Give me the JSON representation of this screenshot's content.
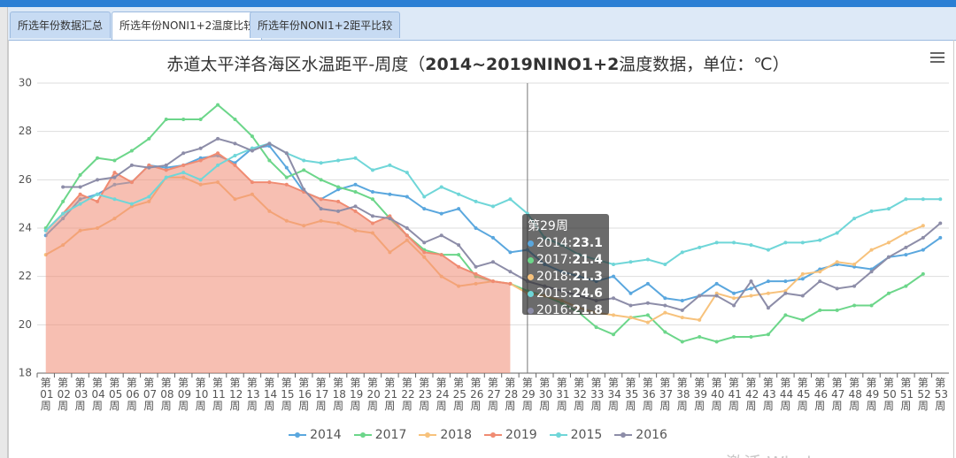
{
  "tabs": [
    "所选年份数据汇总",
    "所选年份NONI1+2温度比较",
    "所选年份NONI1+2距平比较"
  ],
  "watermark": "激活 Windows",
  "chart_data": {
    "type": "line",
    "title_parts": [
      "赤道太平洋各海区水温距平-周度（",
      "2014~2019NINO1+2",
      "温度数据，单位：℃）"
    ],
    "categories": [
      "第01周",
      "第02周",
      "第03周",
      "第04周",
      "第05周",
      "第06周",
      "第07周",
      "第08周",
      "第09周",
      "第10周",
      "第11周",
      "第12周",
      "第13周",
      "第14周",
      "第15周",
      "第16周",
      "第17周",
      "第18周",
      "第19周",
      "第20周",
      "第21周",
      "第22周",
      "第23周",
      "第24周",
      "第25周",
      "第26周",
      "第27周",
      "第28周",
      "第29周",
      "第30周",
      "第31周",
      "第32周",
      "第33周",
      "第34周",
      "第35周",
      "第36周",
      "第37周",
      "第38周",
      "第39周",
      "第40周",
      "第41周",
      "第42周",
      "第43周",
      "第44周",
      "第45周",
      "第46周",
      "第47周",
      "第48周",
      "第49周",
      "第50周",
      "第51周",
      "第52周",
      "第53周"
    ],
    "ylim": [
      18,
      30
    ],
    "yticks": [
      18,
      20,
      22,
      24,
      26,
      28,
      30
    ],
    "grid": true,
    "legend": "bottom",
    "series": [
      {
        "name": "2014",
        "color": "#5aa7de",
        "values": [
          23.7,
          24.4,
          25.2,
          25.4,
          25.8,
          25.9,
          26.6,
          26.5,
          26.6,
          26.9,
          27.0,
          26.7,
          27.3,
          27.4,
          26.5,
          25.5,
          25.2,
          25.6,
          25.8,
          25.5,
          25.4,
          25.3,
          24.8,
          24.6,
          24.8,
          24.0,
          23.6,
          23.0,
          23.1,
          22.5,
          22.2,
          22.0,
          21.8,
          22.0,
          21.3,
          21.7,
          21.1,
          21.0,
          21.2,
          21.7,
          21.3,
          21.5,
          21.8,
          21.8,
          21.9,
          22.3,
          22.5,
          22.4,
          22.3,
          22.8,
          22.9,
          23.1,
          23.6
        ]
      },
      {
        "name": "2017",
        "color": "#6cd68a",
        "values": [
          24.0,
          25.1,
          26.2,
          26.9,
          26.8,
          27.2,
          27.7,
          28.5,
          28.5,
          28.5,
          29.1,
          28.5,
          27.8,
          26.8,
          26.1,
          26.4,
          26.0,
          25.7,
          25.5,
          25.2,
          24.4,
          23.7,
          23.1,
          22.9,
          22.9,
          22.0,
          21.8,
          21.7,
          21.4,
          21.2,
          20.9,
          20.5,
          19.9,
          19.6,
          20.3,
          20.4,
          19.7,
          19.3,
          19.5,
          19.3,
          19.5,
          19.5,
          19.6,
          20.4,
          20.2,
          20.6,
          20.6,
          20.8,
          20.8,
          21.3,
          21.6,
          22.1,
          null
        ]
      },
      {
        "name": "2018",
        "color": "#f7c27c",
        "values": [
          22.9,
          23.3,
          23.9,
          24.0,
          24.4,
          24.9,
          25.1,
          26.1,
          26.1,
          25.8,
          25.9,
          25.2,
          25.4,
          24.7,
          24.3,
          24.1,
          24.3,
          24.2,
          23.9,
          23.8,
          23.0,
          23.5,
          22.8,
          22.0,
          21.6,
          21.7,
          21.8,
          21.7,
          21.3,
          21.2,
          21.0,
          20.7,
          20.5,
          20.4,
          20.3,
          20.1,
          20.5,
          20.3,
          20.2,
          21.3,
          21.1,
          21.2,
          21.3,
          21.4,
          22.1,
          22.2,
          22.6,
          22.5,
          23.1,
          23.4,
          23.8,
          24.1,
          null
        ]
      },
      {
        "name": "2019",
        "color": "#f08b72",
        "area": true,
        "values": [
          23.9,
          24.6,
          25.4,
          25.1,
          26.3,
          25.9,
          26.6,
          26.4,
          26.6,
          26.8,
          27.1,
          26.6,
          25.9,
          25.9,
          25.8,
          25.5,
          25.2,
          25.1,
          24.7,
          24.2,
          24.5,
          23.7,
          23.0,
          22.9,
          22.4,
          22.1,
          21.8,
          21.7,
          null,
          null,
          null,
          null,
          null,
          null,
          null,
          null,
          null,
          null,
          null,
          null,
          null,
          null,
          null,
          null,
          null,
          null,
          null,
          null,
          null,
          null,
          null,
          null,
          null
        ]
      },
      {
        "name": "2015",
        "color": "#6fd6d8",
        "values": [
          23.9,
          24.6,
          25.0,
          25.4,
          25.2,
          25.0,
          25.3,
          26.1,
          26.3,
          26.0,
          26.6,
          27.0,
          27.3,
          27.5,
          27.1,
          26.8,
          26.7,
          26.8,
          26.9,
          26.4,
          26.6,
          26.3,
          25.3,
          25.7,
          25.4,
          25.1,
          24.9,
          25.2,
          24.6,
          23.6,
          23.3,
          22.9,
          22.7,
          22.5,
          22.6,
          22.7,
          22.5,
          23.0,
          23.2,
          23.4,
          23.4,
          23.3,
          23.1,
          23.4,
          23.4,
          23.5,
          23.8,
          24.4,
          24.7,
          24.8,
          25.2,
          25.2,
          25.2
        ]
      },
      {
        "name": "2016",
        "color": "#8d8da8",
        "values": [
          null,
          25.7,
          25.7,
          26.0,
          26.1,
          26.6,
          26.5,
          26.6,
          27.1,
          27.3,
          27.7,
          27.5,
          27.2,
          27.5,
          27.1,
          25.6,
          24.8,
          24.7,
          24.9,
          24.5,
          24.4,
          24.0,
          23.4,
          23.7,
          23.3,
          22.4,
          22.6,
          22.2,
          21.8,
          21.6,
          21.4,
          21.2,
          21.0,
          21.1,
          20.8,
          20.9,
          20.8,
          20.6,
          21.2,
          21.2,
          20.8,
          21.8,
          20.7,
          21.3,
          21.2,
          21.8,
          21.5,
          21.6,
          22.2,
          22.8,
          23.2,
          23.6,
          24.2
        ]
      }
    ],
    "tooltip": {
      "title": "第29周",
      "items": [
        {
          "label": "2014:",
          "value": 23.1,
          "color": "#5aa7de"
        },
        {
          "label": "2017:",
          "value": 21.4,
          "color": "#6cd68a"
        },
        {
          "label": "2018:",
          "value": 21.3,
          "color": "#f7c27c"
        },
        {
          "label": "2015:",
          "value": 24.6,
          "color": "#6fd6d8"
        },
        {
          "label": "2016:",
          "value": 21.8,
          "color": "#8d8da8"
        }
      ]
    }
  }
}
